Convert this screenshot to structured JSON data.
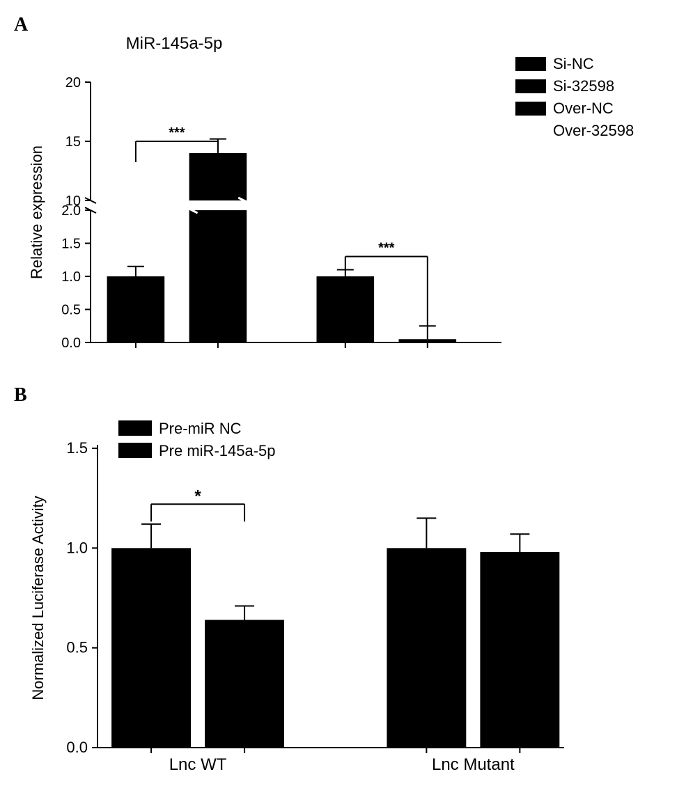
{
  "panelA": {
    "label": "A",
    "title": "MiR-145a-5p",
    "ylabel": "Relative expression",
    "type": "bar",
    "break_axis": true,
    "lower_ylim": [
      0.0,
      2.0
    ],
    "lower_ticks": [
      0.0,
      0.5,
      1.0,
      1.5,
      2.0
    ],
    "upper_ylim": [
      10,
      20
    ],
    "upper_ticks": [
      10,
      15,
      20
    ],
    "bars": [
      {
        "value": 1.0,
        "err": 0.15,
        "color": "#000000"
      },
      {
        "value": 14.0,
        "err": 1.2,
        "color": "#000000"
      },
      {
        "value": 1.0,
        "err": 0.1,
        "color": "#000000"
      },
      {
        "value": 0.05,
        "err": 0.2,
        "color": "#000000"
      }
    ],
    "legend": [
      {
        "label": "Si-NC",
        "swatch": true,
        "color": "#000000"
      },
      {
        "label": "Si-32598",
        "swatch": true,
        "color": "#000000"
      },
      {
        "label": "Over-NC",
        "swatch": true,
        "color": "#000000"
      },
      {
        "label": "Over-32598",
        "swatch": false,
        "color": "#000000"
      }
    ],
    "significance": [
      {
        "from": 0,
        "to": 1,
        "label": "***",
        "y": 15.0
      },
      {
        "from": 2,
        "to": 3,
        "label": "***",
        "y_lower": 1.3
      }
    ],
    "bar_width": 0.7,
    "group_gap": 0.5,
    "stroke": "#000000",
    "stroke_width": 2,
    "font_color": "#000000"
  },
  "panelB": {
    "label": "B",
    "ylabel": "Normalized Luciferase Activity",
    "type": "bar",
    "ylim": [
      0.0,
      1.5
    ],
    "yticks": [
      0.0,
      0.5,
      1.0,
      1.5
    ],
    "categories": [
      "Lnc WT",
      "Lnc Mutant"
    ],
    "bars": [
      {
        "value": 1.0,
        "err": 0.12,
        "color": "#000000"
      },
      {
        "value": 0.64,
        "err": 0.07,
        "color": "#000000"
      },
      {
        "value": 1.0,
        "err": 0.15,
        "color": "#000000"
      },
      {
        "value": 0.98,
        "err": 0.09,
        "color": "#000000"
      }
    ],
    "legend": [
      {
        "label": "Pre-miR NC",
        "color": "#000000"
      },
      {
        "label": "Pre miR-145a-5p",
        "color": "#000000"
      }
    ],
    "significance": [
      {
        "from": 0,
        "to": 1,
        "label": "*",
        "y": 1.22
      }
    ],
    "bar_width": 0.8,
    "group_gap": 0.6,
    "stroke": "#000000",
    "stroke_width": 2,
    "font_color": "#000000"
  }
}
